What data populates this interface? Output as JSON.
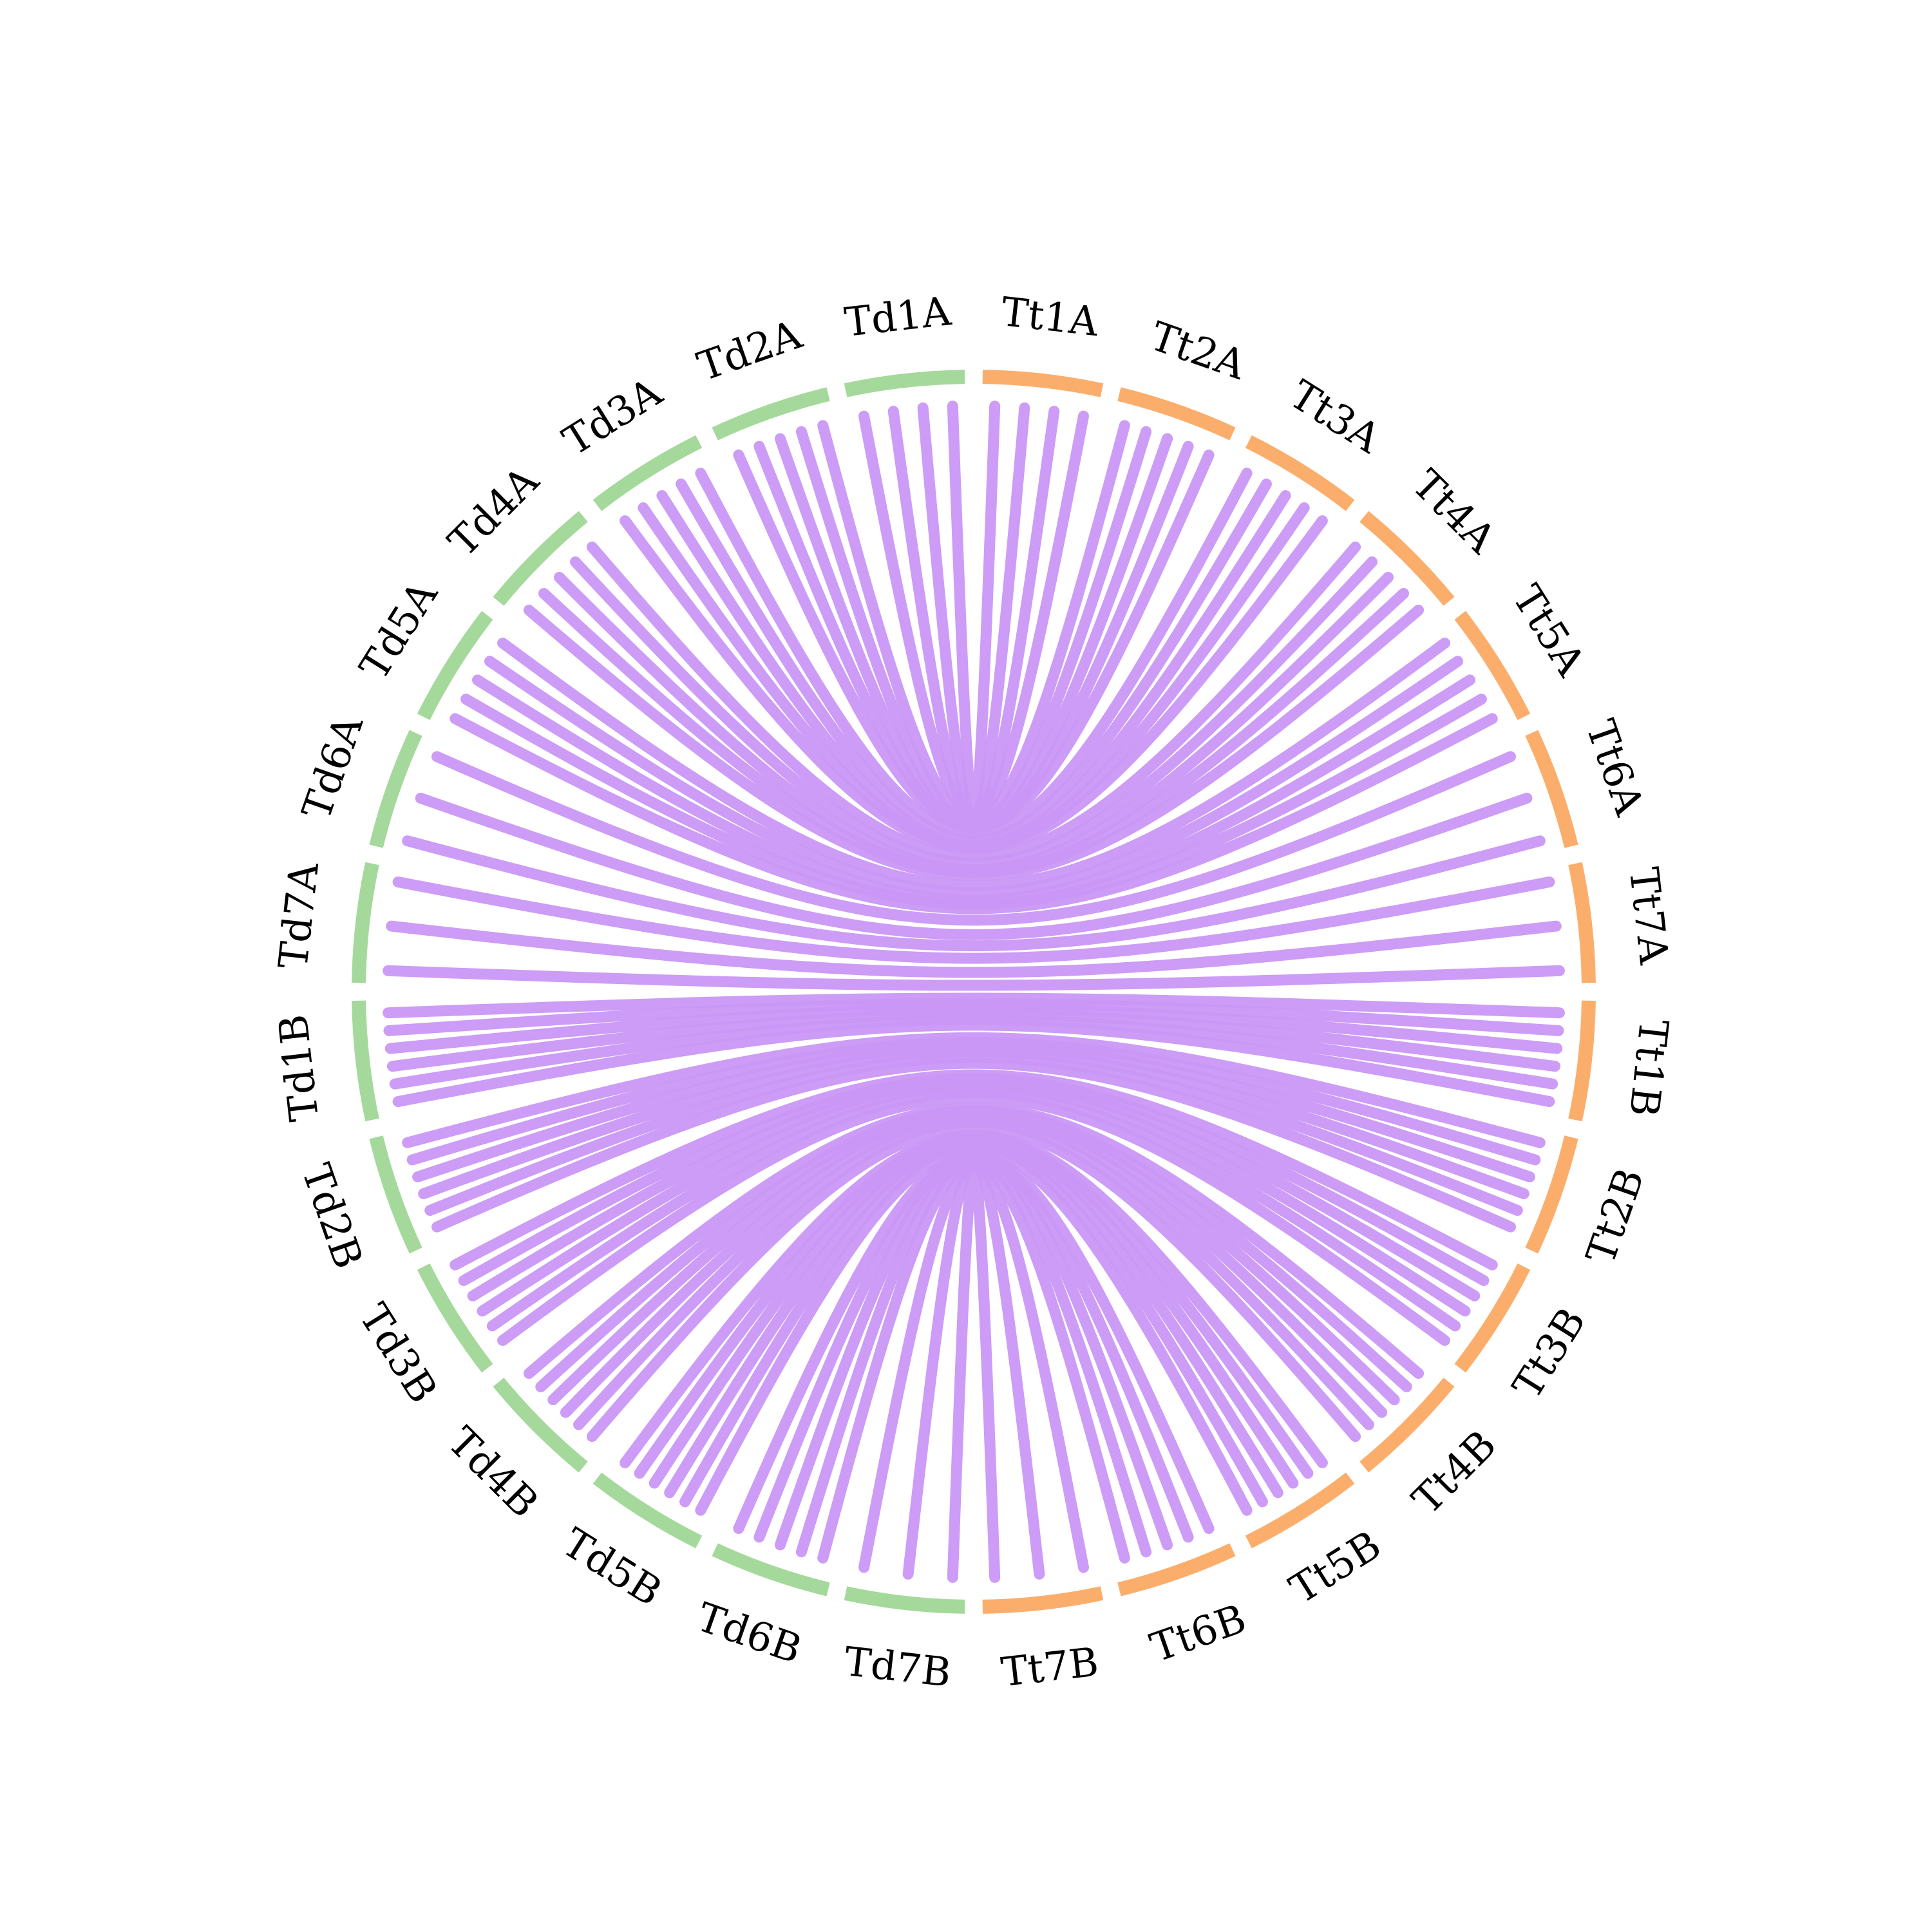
{
  "diagram": {
    "colors": {
      "genome_td": "#a5d99c",
      "genome_tt": "#fbae6c",
      "link": "#c997f5",
      "label": "#000000",
      "background": "#ffffff"
    },
    "left_chromosomes": [
      "Td1A",
      "Td2A",
      "Td3A",
      "Td4A",
      "Td5A",
      "Td6A",
      "Td7A",
      "Td1B",
      "Td2B",
      "Td3B",
      "Td4B",
      "Td5B",
      "Td6B",
      "Td7B"
    ],
    "right_chromosomes": [
      "Tt1A",
      "Tt2A",
      "Tt3A",
      "Tt4A",
      "Tt5A",
      "Tt6A",
      "Tt7A",
      "Tt1B",
      "Tt2B",
      "Tt3B",
      "Tt4B",
      "Tt5B",
      "Tt6B",
      "Tt7B"
    ],
    "links": [
      {
        "from": "Td1A",
        "to": "Tt1A",
        "copies": 4
      },
      {
        "from": "Td2A",
        "to": "Tt2A",
        "copies": 5
      },
      {
        "from": "Td3A",
        "to": "Tt3A",
        "copies": 5
      },
      {
        "from": "Td4A",
        "to": "Tt4A",
        "copies": 5
      },
      {
        "from": "Td5A",
        "to": "Tt5A",
        "copies": 5
      },
      {
        "from": "Td6A",
        "to": "Tt6A",
        "copies": 3
      },
      {
        "from": "Td7A",
        "to": "Tt7A",
        "copies": 3
      },
      {
        "from": "Td1B",
        "to": "Tt1B",
        "copies": 6
      },
      {
        "from": "Td2B",
        "to": "Tt2B",
        "copies": 6
      },
      {
        "from": "Td3B",
        "to": "Tt3B",
        "copies": 6
      },
      {
        "from": "Td4B",
        "to": "Tt4B",
        "copies": 6
      },
      {
        "from": "Td5B",
        "to": "Tt5B",
        "copies": 6
      },
      {
        "from": "Td6B",
        "to": "Tt6B",
        "copies": 5
      },
      {
        "from": "Td7B",
        "to": "Tt7B",
        "copies": 3
      }
    ]
  }
}
